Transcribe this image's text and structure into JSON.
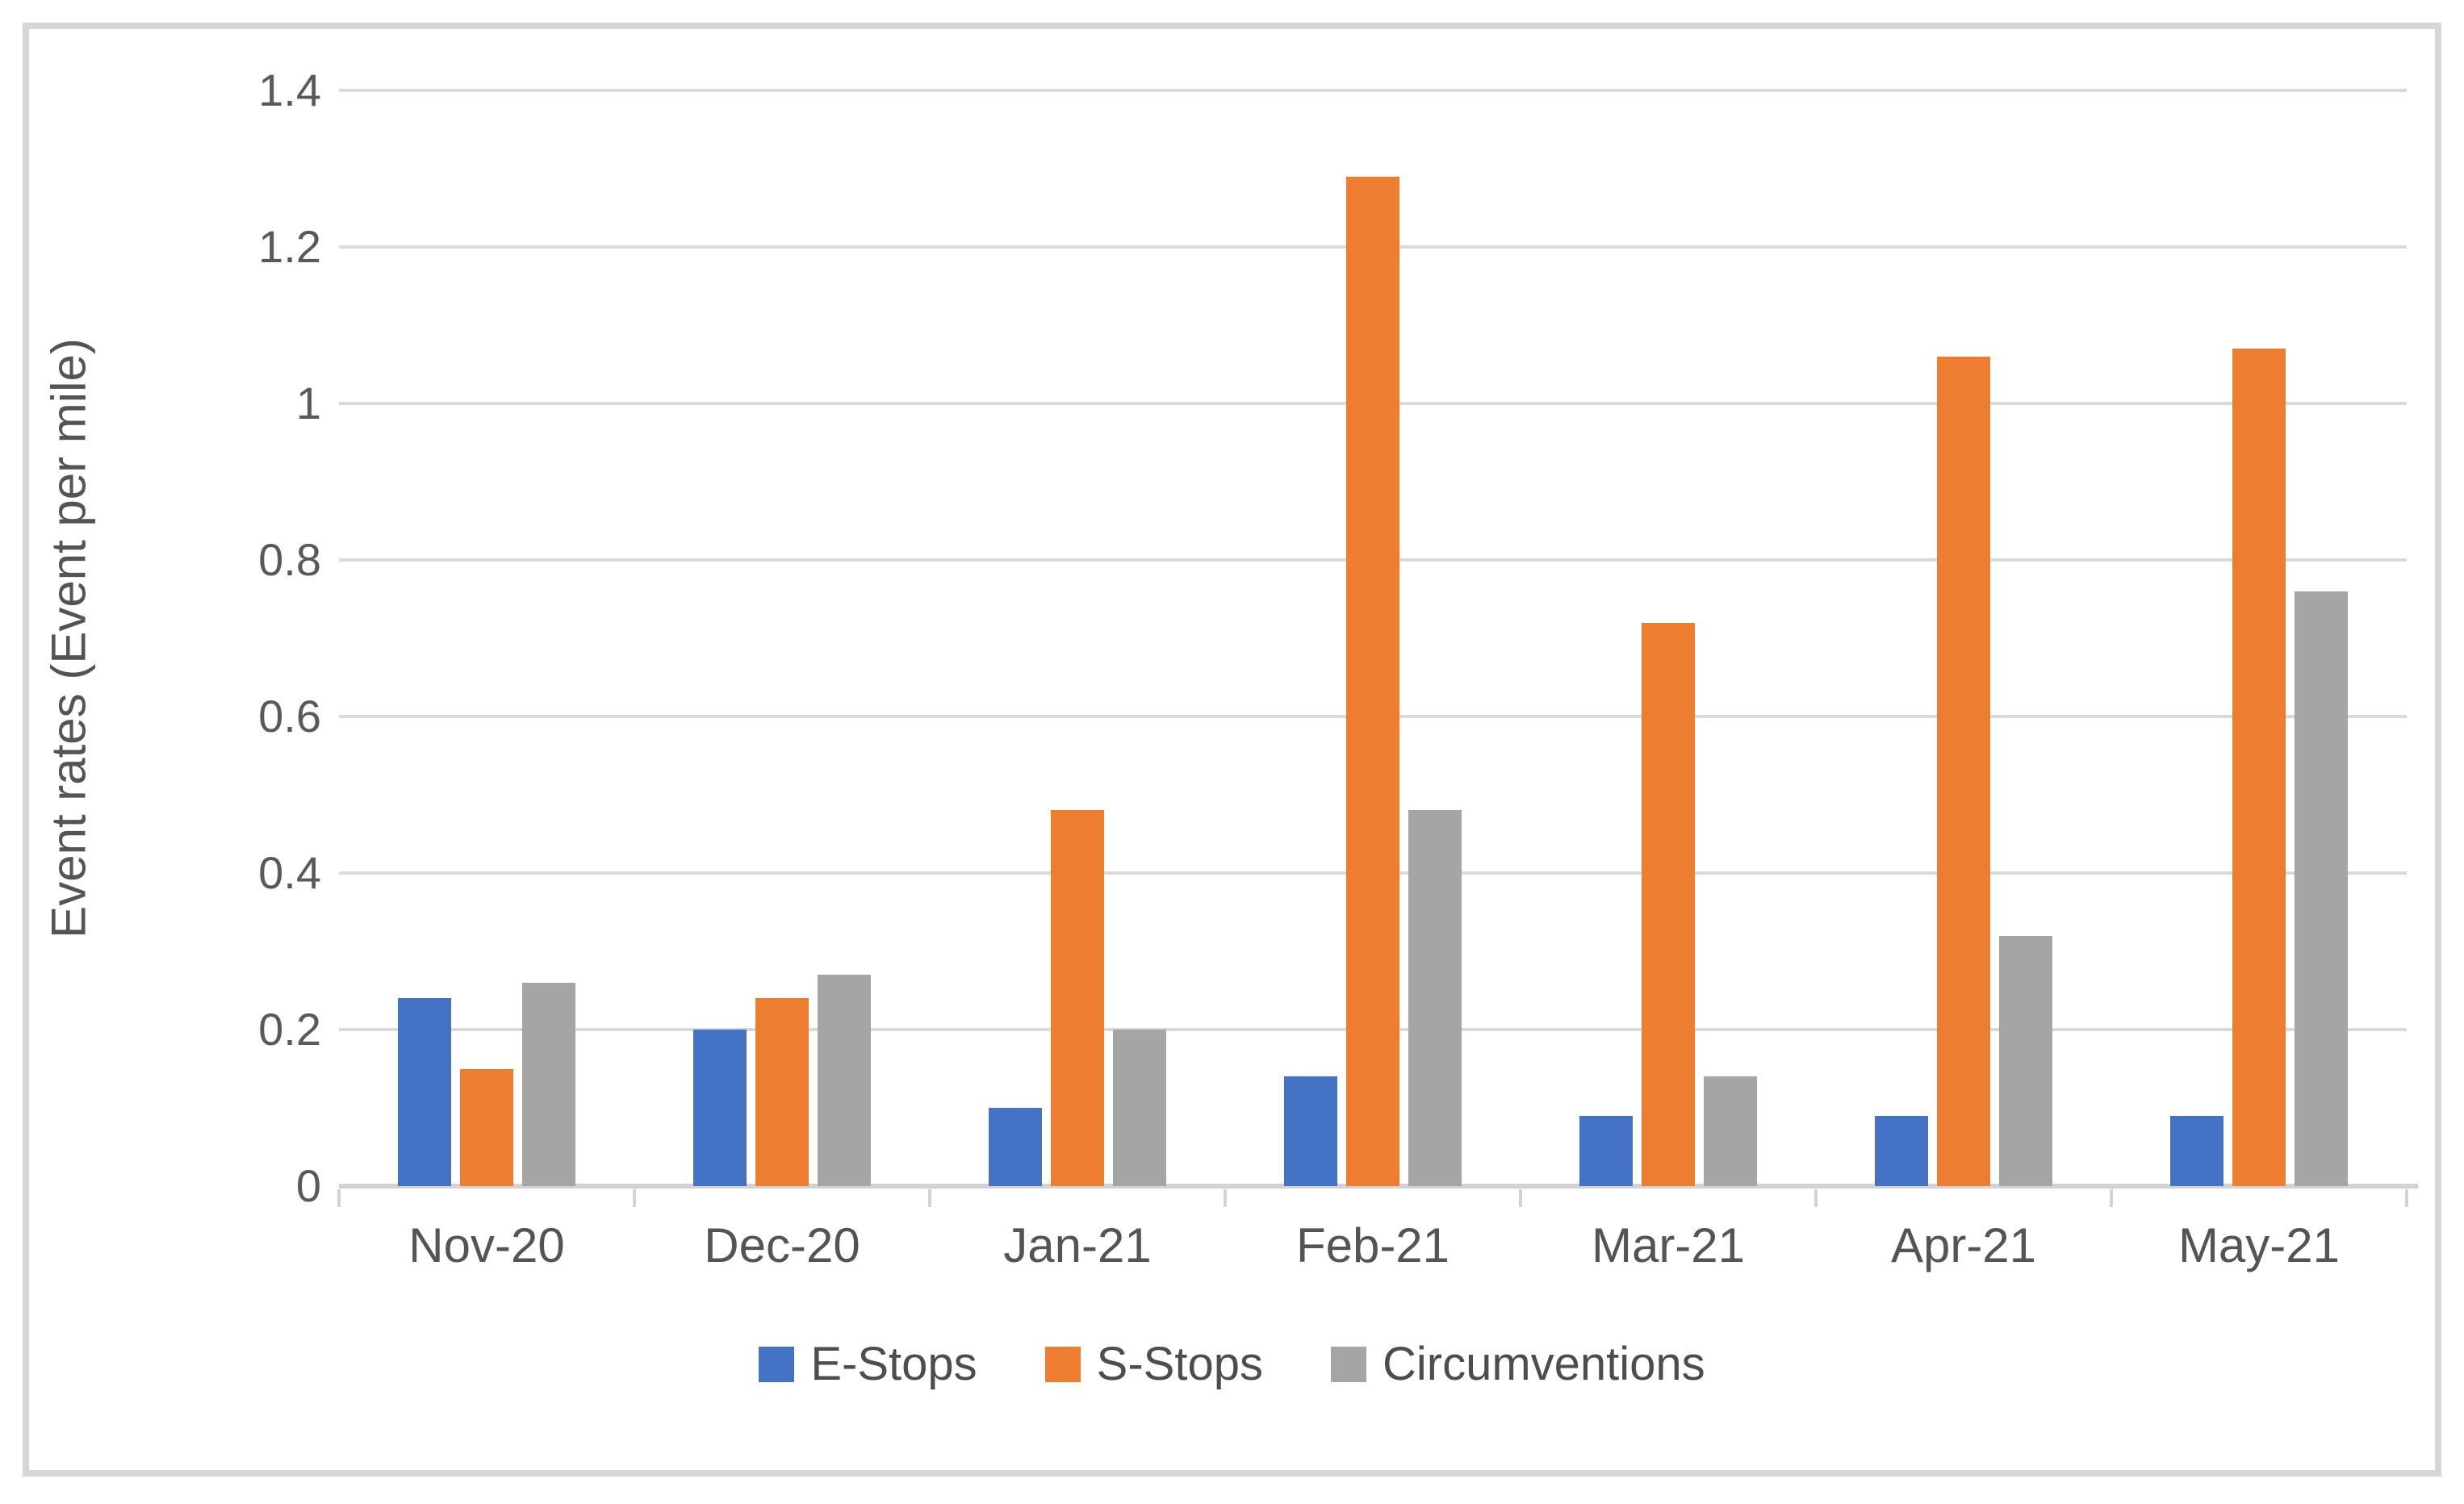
{
  "chart_data": {
    "type": "bar",
    "title": "",
    "categories": [
      "Nov-20",
      "Dec-20",
      "Jan-21",
      "Feb-21",
      "Mar-21",
      "Apr-21",
      "May-21"
    ],
    "series": [
      {
        "name": "E-Stops",
        "color": "#4472C4",
        "values": [
          0.24,
          0.2,
          0.1,
          0.14,
          0.09,
          0.09,
          0.09
        ]
      },
      {
        "name": "S-Stops",
        "color": "#ED7D31",
        "values": [
          0.15,
          0.24,
          0.48,
          1.29,
          0.72,
          1.06,
          1.07
        ]
      },
      {
        "name": "Circumventions",
        "color": "#A5A5A5",
        "values": [
          0.26,
          0.27,
          0.2,
          0.48,
          0.14,
          0.32,
          0.76
        ]
      }
    ],
    "xlabel": "",
    "ylabel": "Event rates (Event per mile)",
    "ylim": [
      0,
      1.4
    ],
    "ytick_labels": [
      "0",
      "0.2",
      "0.4",
      "0.6",
      "0.8",
      "1",
      "1.2",
      "1.4"
    ],
    "ytick_values": [
      0,
      0.2,
      0.4,
      0.6,
      0.8,
      1.0,
      1.2,
      1.4
    ],
    "grid": true,
    "legend_position": "bottom"
  },
  "colors": {
    "background": "#ffffff",
    "frame_border": "#d6d6d6",
    "gridline": "#d9d9d9",
    "axis_line": "#d2d2d2",
    "tick_text": "#595959",
    "label_text": "#545454",
    "legend_text": "#4d4d4d"
  }
}
